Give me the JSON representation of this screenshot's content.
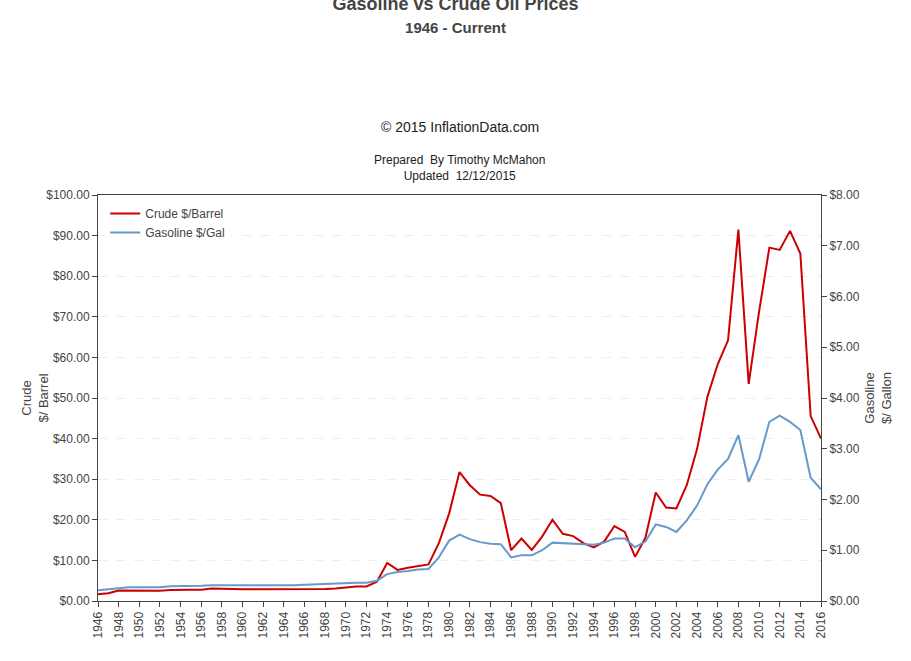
{
  "chart_data": {
    "type": "line",
    "title": "Gasoline vs Crude Oil Prices",
    "subtitle": "1946 - Current",
    "annotations": [
      "© 2015 InflationData.com",
      "Prepared  By Timothy McMahon\nUpdated  12/12/2015"
    ],
    "ylabel": "Crude\n$/ Barrel",
    "y2label": "Gasoline\n$/ Gallon",
    "x": [
      1946,
      1947,
      1948,
      1949,
      1950,
      1951,
      1952,
      1953,
      1954,
      1955,
      1956,
      1957,
      1958,
      1959,
      1960,
      1961,
      1962,
      1963,
      1964,
      1965,
      1966,
      1967,
      1968,
      1969,
      1970,
      1971,
      1972,
      1973,
      1974,
      1975,
      1976,
      1977,
      1978,
      1979,
      1980,
      1981,
      1982,
      1983,
      1984,
      1985,
      1986,
      1987,
      1988,
      1989,
      1990,
      1991,
      1992,
      1993,
      1994,
      1995,
      1996,
      1997,
      1998,
      1999,
      2000,
      2001,
      2002,
      2003,
      2004,
      2005,
      2006,
      2007,
      2008,
      2009,
      2010,
      2011,
      2012,
      2013,
      2014,
      2015,
      2016
    ],
    "series": [
      {
        "name": "Crude $/Barrel",
        "color": "#CC0000",
        "values": [
          1.63,
          1.93,
          2.6,
          2.54,
          2.51,
          2.53,
          2.53,
          2.68,
          2.78,
          2.77,
          2.79,
          3.09,
          3.01,
          2.9,
          2.88,
          2.89,
          2.9,
          2.89,
          2.88,
          2.86,
          2.88,
          2.92,
          2.94,
          3.09,
          3.35,
          3.6,
          3.6,
          4.75,
          9.35,
          7.67,
          8.19,
          8.57,
          9.0,
          14.27,
          21.59,
          31.77,
          28.52,
          26.19,
          25.88,
          24.09,
          12.51,
          15.4,
          12.58,
          15.86,
          20.03,
          16.54,
          15.99,
          14.25,
          13.19,
          14.62,
          18.46,
          17.02,
          10.87,
          15.56,
          26.72,
          23.0,
          22.81,
          28.53,
          37.41,
          50.28,
          58.3,
          64.2,
          91.48,
          53.48,
          71.21,
          87.04,
          86.46,
          91.17,
          85.6,
          45.54,
          40.0
        ]
      },
      {
        "name": "Gasoline $/Gal",
        "color": "#6699CC",
        "axis": "y2",
        "values": [
          0.21,
          0.23,
          0.26,
          0.27,
          0.27,
          0.27,
          0.27,
          0.29,
          0.29,
          0.29,
          0.3,
          0.31,
          0.31,
          0.31,
          0.31,
          0.31,
          0.31,
          0.3,
          0.3,
          0.31,
          0.32,
          0.33,
          0.34,
          0.35,
          0.36,
          0.36,
          0.36,
          0.4,
          0.53,
          0.57,
          0.59,
          0.62,
          0.63,
          0.86,
          1.19,
          1.31,
          1.22,
          1.16,
          1.13,
          1.12,
          0.86,
          0.9,
          0.9,
          1.0,
          1.15,
          1.14,
          1.13,
          1.11,
          1.11,
          1.15,
          1.23,
          1.23,
          1.06,
          1.17,
          1.51,
          1.46,
          1.36,
          1.59,
          1.88,
          2.3,
          2.59,
          2.8,
          3.27,
          2.35,
          2.79,
          3.53,
          3.65,
          3.53,
          3.37,
          2.43,
          2.2
        ]
      }
    ],
    "xlim": [
      1946,
      2016
    ],
    "xticks": [
      1946,
      1948,
      1950,
      1952,
      1954,
      1956,
      1958,
      1960,
      1962,
      1964,
      1966,
      1968,
      1970,
      1972,
      1974,
      1976,
      1978,
      1980,
      1982,
      1984,
      1986,
      1988,
      1990,
      1992,
      1994,
      1996,
      1998,
      2000,
      2002,
      2004,
      2006,
      2008,
      2010,
      2012,
      2014,
      2016
    ],
    "ylim": [
      0,
      100
    ],
    "yticks": [
      {
        "value": 0,
        "label": "$0.00"
      },
      {
        "value": 10,
        "label": "$10.00"
      },
      {
        "value": 20,
        "label": "$20.00"
      },
      {
        "value": 30,
        "label": "$30.00"
      },
      {
        "value": 40,
        "label": "$40.00"
      },
      {
        "value": 50,
        "label": "$50.00"
      },
      {
        "value": 60,
        "label": "$60.00"
      },
      {
        "value": 70,
        "label": "$70.00"
      },
      {
        "value": 80,
        "label": "$80.00"
      },
      {
        "value": 90,
        "label": "$90.00"
      },
      {
        "value": 100,
        "label": "$100.00"
      }
    ],
    "y2lim": [
      0,
      8
    ],
    "y2ticks": [
      {
        "value": 0,
        "label": "$0.00"
      },
      {
        "value": 1,
        "label": "$1.00"
      },
      {
        "value": 2,
        "label": "$2.00"
      },
      {
        "value": 3,
        "label": "$3.00"
      },
      {
        "value": 4,
        "label": "$4.00"
      },
      {
        "value": 5,
        "label": "$5.00"
      },
      {
        "value": 6,
        "label": "$6.00"
      },
      {
        "value": 7,
        "label": "$7.00"
      },
      {
        "value": 8,
        "label": "$8.00"
      }
    ],
    "grid": true,
    "legend": "upper left"
  }
}
